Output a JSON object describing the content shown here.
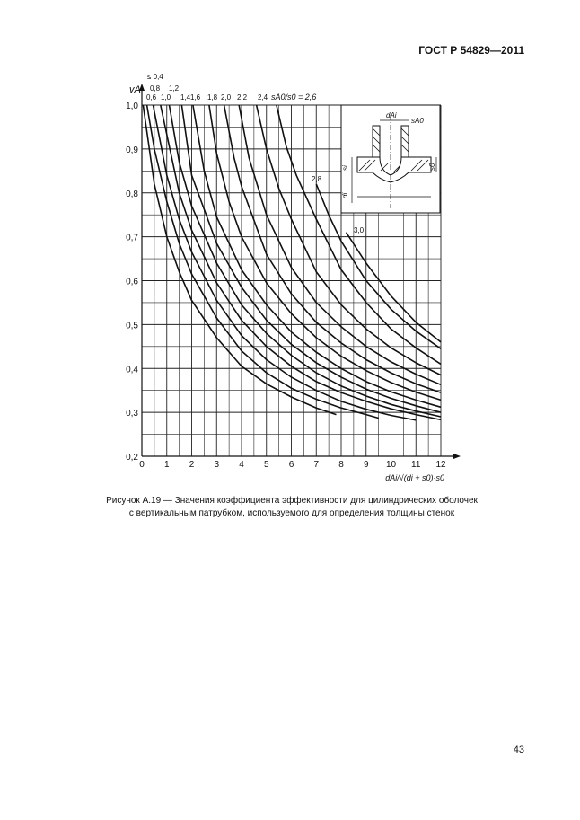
{
  "header": {
    "doc_id": "ГОСТ Р 54829—2011"
  },
  "page_number": "43",
  "caption": {
    "line1": "Рисунок А.19 — Значения коэффициента эффективности для цилиндрических оболочек",
    "line2": "с вертикальным патрубком, используемого для определения толщины стенок"
  },
  "chart_data": {
    "type": "line",
    "title": "",
    "xlabel": "dAi/√(di + s0)·s0",
    "ylabel": "vA",
    "xlim": [
      0,
      12
    ],
    "ylim": [
      0.2,
      1.0
    ],
    "grid": true,
    "x_ticks": [
      "0",
      "1",
      "2",
      "3",
      "4",
      "5",
      "6",
      "7",
      "8",
      "9",
      "10",
      "11",
      "12"
    ],
    "y_ticks": [
      "0,2",
      "0,3",
      "0,4",
      "0,5",
      "0,6",
      "0,7",
      "0,8",
      "0,9",
      "1,0"
    ],
    "parameter_label": "sA0/s0 = 2,6",
    "series": [
      {
        "name": "≤ 0,4",
        "points": [
          [
            0.05,
            1.0
          ],
          [
            0.5,
            0.82
          ],
          [
            1,
            0.7
          ],
          [
            1.5,
            0.62
          ],
          [
            2,
            0.555
          ],
          [
            3,
            0.47
          ],
          [
            4,
            0.405
          ],
          [
            5,
            0.365
          ],
          [
            6,
            0.335
          ],
          [
            7,
            0.31
          ],
          [
            7.8,
            0.295
          ]
        ]
      },
      {
        "name": "0,6",
        "points": [
          [
            0.2,
            1.0
          ],
          [
            0.5,
            0.9
          ],
          [
            1,
            0.78
          ],
          [
            1.5,
            0.685
          ],
          [
            2,
            0.615
          ],
          [
            3,
            0.515
          ],
          [
            4,
            0.44
          ],
          [
            5,
            0.39
          ],
          [
            6,
            0.355
          ],
          [
            7,
            0.33
          ],
          [
            8,
            0.31
          ],
          [
            9,
            0.295
          ],
          [
            9.5,
            0.287
          ]
        ]
      },
      {
        "name": "0,8",
        "points": [
          [
            0.45,
            1.0
          ],
          [
            1,
            0.84
          ],
          [
            1.5,
            0.74
          ],
          [
            2,
            0.665
          ],
          [
            3,
            0.555
          ],
          [
            4,
            0.475
          ],
          [
            5,
            0.42
          ],
          [
            6,
            0.38
          ],
          [
            7,
            0.35
          ],
          [
            8,
            0.325
          ],
          [
            9,
            0.307
          ],
          [
            10,
            0.293
          ],
          [
            11,
            0.282
          ]
        ]
      },
      {
        "name": "1,0",
        "points": [
          [
            0.75,
            1.0
          ],
          [
            1.5,
            0.8
          ],
          [
            2,
            0.715
          ],
          [
            3,
            0.595
          ],
          [
            4,
            0.51
          ],
          [
            5,
            0.45
          ],
          [
            6,
            0.405
          ],
          [
            7,
            0.37
          ],
          [
            8,
            0.345
          ],
          [
            9,
            0.325
          ],
          [
            10,
            0.308
          ],
          [
            11,
            0.295
          ],
          [
            12,
            0.283
          ]
        ]
      },
      {
        "name": "1,2",
        "points": [
          [
            1.1,
            1.0
          ],
          [
            1.5,
            0.87
          ],
          [
            2,
            0.77
          ],
          [
            3,
            0.64
          ],
          [
            4,
            0.545
          ],
          [
            5,
            0.48
          ],
          [
            6,
            0.43
          ],
          [
            7,
            0.39
          ],
          [
            8,
            0.36
          ],
          [
            9,
            0.337
          ],
          [
            10,
            0.318
          ],
          [
            11,
            0.303
          ],
          [
            12,
            0.29
          ]
        ]
      },
      {
        "name": "1,4",
        "points": [
          [
            1.6,
            1.0
          ],
          [
            2,
            0.84
          ],
          [
            3,
            0.685
          ],
          [
            4,
            0.585
          ],
          [
            5,
            0.51
          ],
          [
            6,
            0.455
          ],
          [
            7,
            0.413
          ],
          [
            8,
            0.38
          ],
          [
            9,
            0.353
          ],
          [
            10,
            0.332
          ],
          [
            11,
            0.315
          ],
          [
            12,
            0.3
          ]
        ]
      },
      {
        "name": "1,6",
        "points": [
          [
            2.05,
            1.0
          ],
          [
            2.5,
            0.85
          ],
          [
            3,
            0.745
          ],
          [
            4,
            0.625
          ],
          [
            5,
            0.545
          ],
          [
            6,
            0.483
          ],
          [
            7,
            0.437
          ],
          [
            8,
            0.4
          ],
          [
            9,
            0.37
          ],
          [
            10,
            0.347
          ],
          [
            11,
            0.328
          ],
          [
            12,
            0.312
          ]
        ]
      },
      {
        "name": "1,8",
        "points": [
          [
            2.7,
            1.0
          ],
          [
            3,
            0.89
          ],
          [
            3.5,
            0.78
          ],
          [
            4,
            0.7
          ],
          [
            5,
            0.595
          ],
          [
            6,
            0.525
          ],
          [
            7,
            0.47
          ],
          [
            8,
            0.428
          ],
          [
            9,
            0.395
          ],
          [
            10,
            0.368
          ],
          [
            11,
            0.346
          ],
          [
            12,
            0.328
          ]
        ]
      },
      {
        "name": "2,0",
        "points": [
          [
            3.3,
            1.0
          ],
          [
            3.7,
            0.88
          ],
          [
            4,
            0.815
          ],
          [
            5,
            0.66
          ],
          [
            6,
            0.57
          ],
          [
            7,
            0.505
          ],
          [
            8,
            0.458
          ],
          [
            9,
            0.42
          ],
          [
            10,
            0.39
          ],
          [
            11,
            0.365
          ],
          [
            12,
            0.345
          ]
        ]
      },
      {
        "name": "2,2",
        "points": [
          [
            3.9,
            1.0
          ],
          [
            4.3,
            0.88
          ],
          [
            5,
            0.75
          ],
          [
            6,
            0.63
          ],
          [
            7,
            0.55
          ],
          [
            8,
            0.495
          ],
          [
            9,
            0.45
          ],
          [
            10,
            0.415
          ],
          [
            11,
            0.387
          ],
          [
            12,
            0.363
          ]
        ]
      },
      {
        "name": "2,4",
        "points": [
          [
            4.6,
            1.0
          ],
          [
            5,
            0.9
          ],
          [
            5.5,
            0.81
          ],
          [
            6,
            0.74
          ],
          [
            7,
            0.62
          ],
          [
            8,
            0.545
          ],
          [
            9,
            0.49
          ],
          [
            10,
            0.447
          ],
          [
            11,
            0.413
          ],
          [
            12,
            0.385
          ]
        ]
      },
      {
        "name": "2,6",
        "points": [
          [
            5.4,
            1.0
          ],
          [
            5.8,
            0.905
          ],
          [
            6.2,
            0.84
          ],
          [
            7,
            0.74
          ],
          [
            8,
            0.625
          ],
          [
            9,
            0.55
          ],
          [
            10,
            0.49
          ],
          [
            11,
            0.447
          ],
          [
            12,
            0.41
          ]
        ]
      },
      {
        "name": "2,8",
        "points": [
          [
            7.0,
            0.82
          ],
          [
            7.5,
            0.75
          ],
          [
            8,
            0.69
          ],
          [
            9,
            0.6
          ],
          [
            10,
            0.535
          ],
          [
            11,
            0.485
          ],
          [
            12,
            0.445
          ]
        ]
      },
      {
        "name": "3,0",
        "points": [
          [
            8.2,
            0.71
          ],
          [
            9,
            0.64
          ],
          [
            10,
            0.565
          ],
          [
            11,
            0.505
          ],
          [
            12,
            0.46
          ]
        ]
      }
    ]
  },
  "inset": {
    "label_d_ai": "dAi",
    "label_s_a0": "sA0",
    "label_s_i": "si",
    "label_d_i": "di",
    "label_s0": "s0"
  }
}
